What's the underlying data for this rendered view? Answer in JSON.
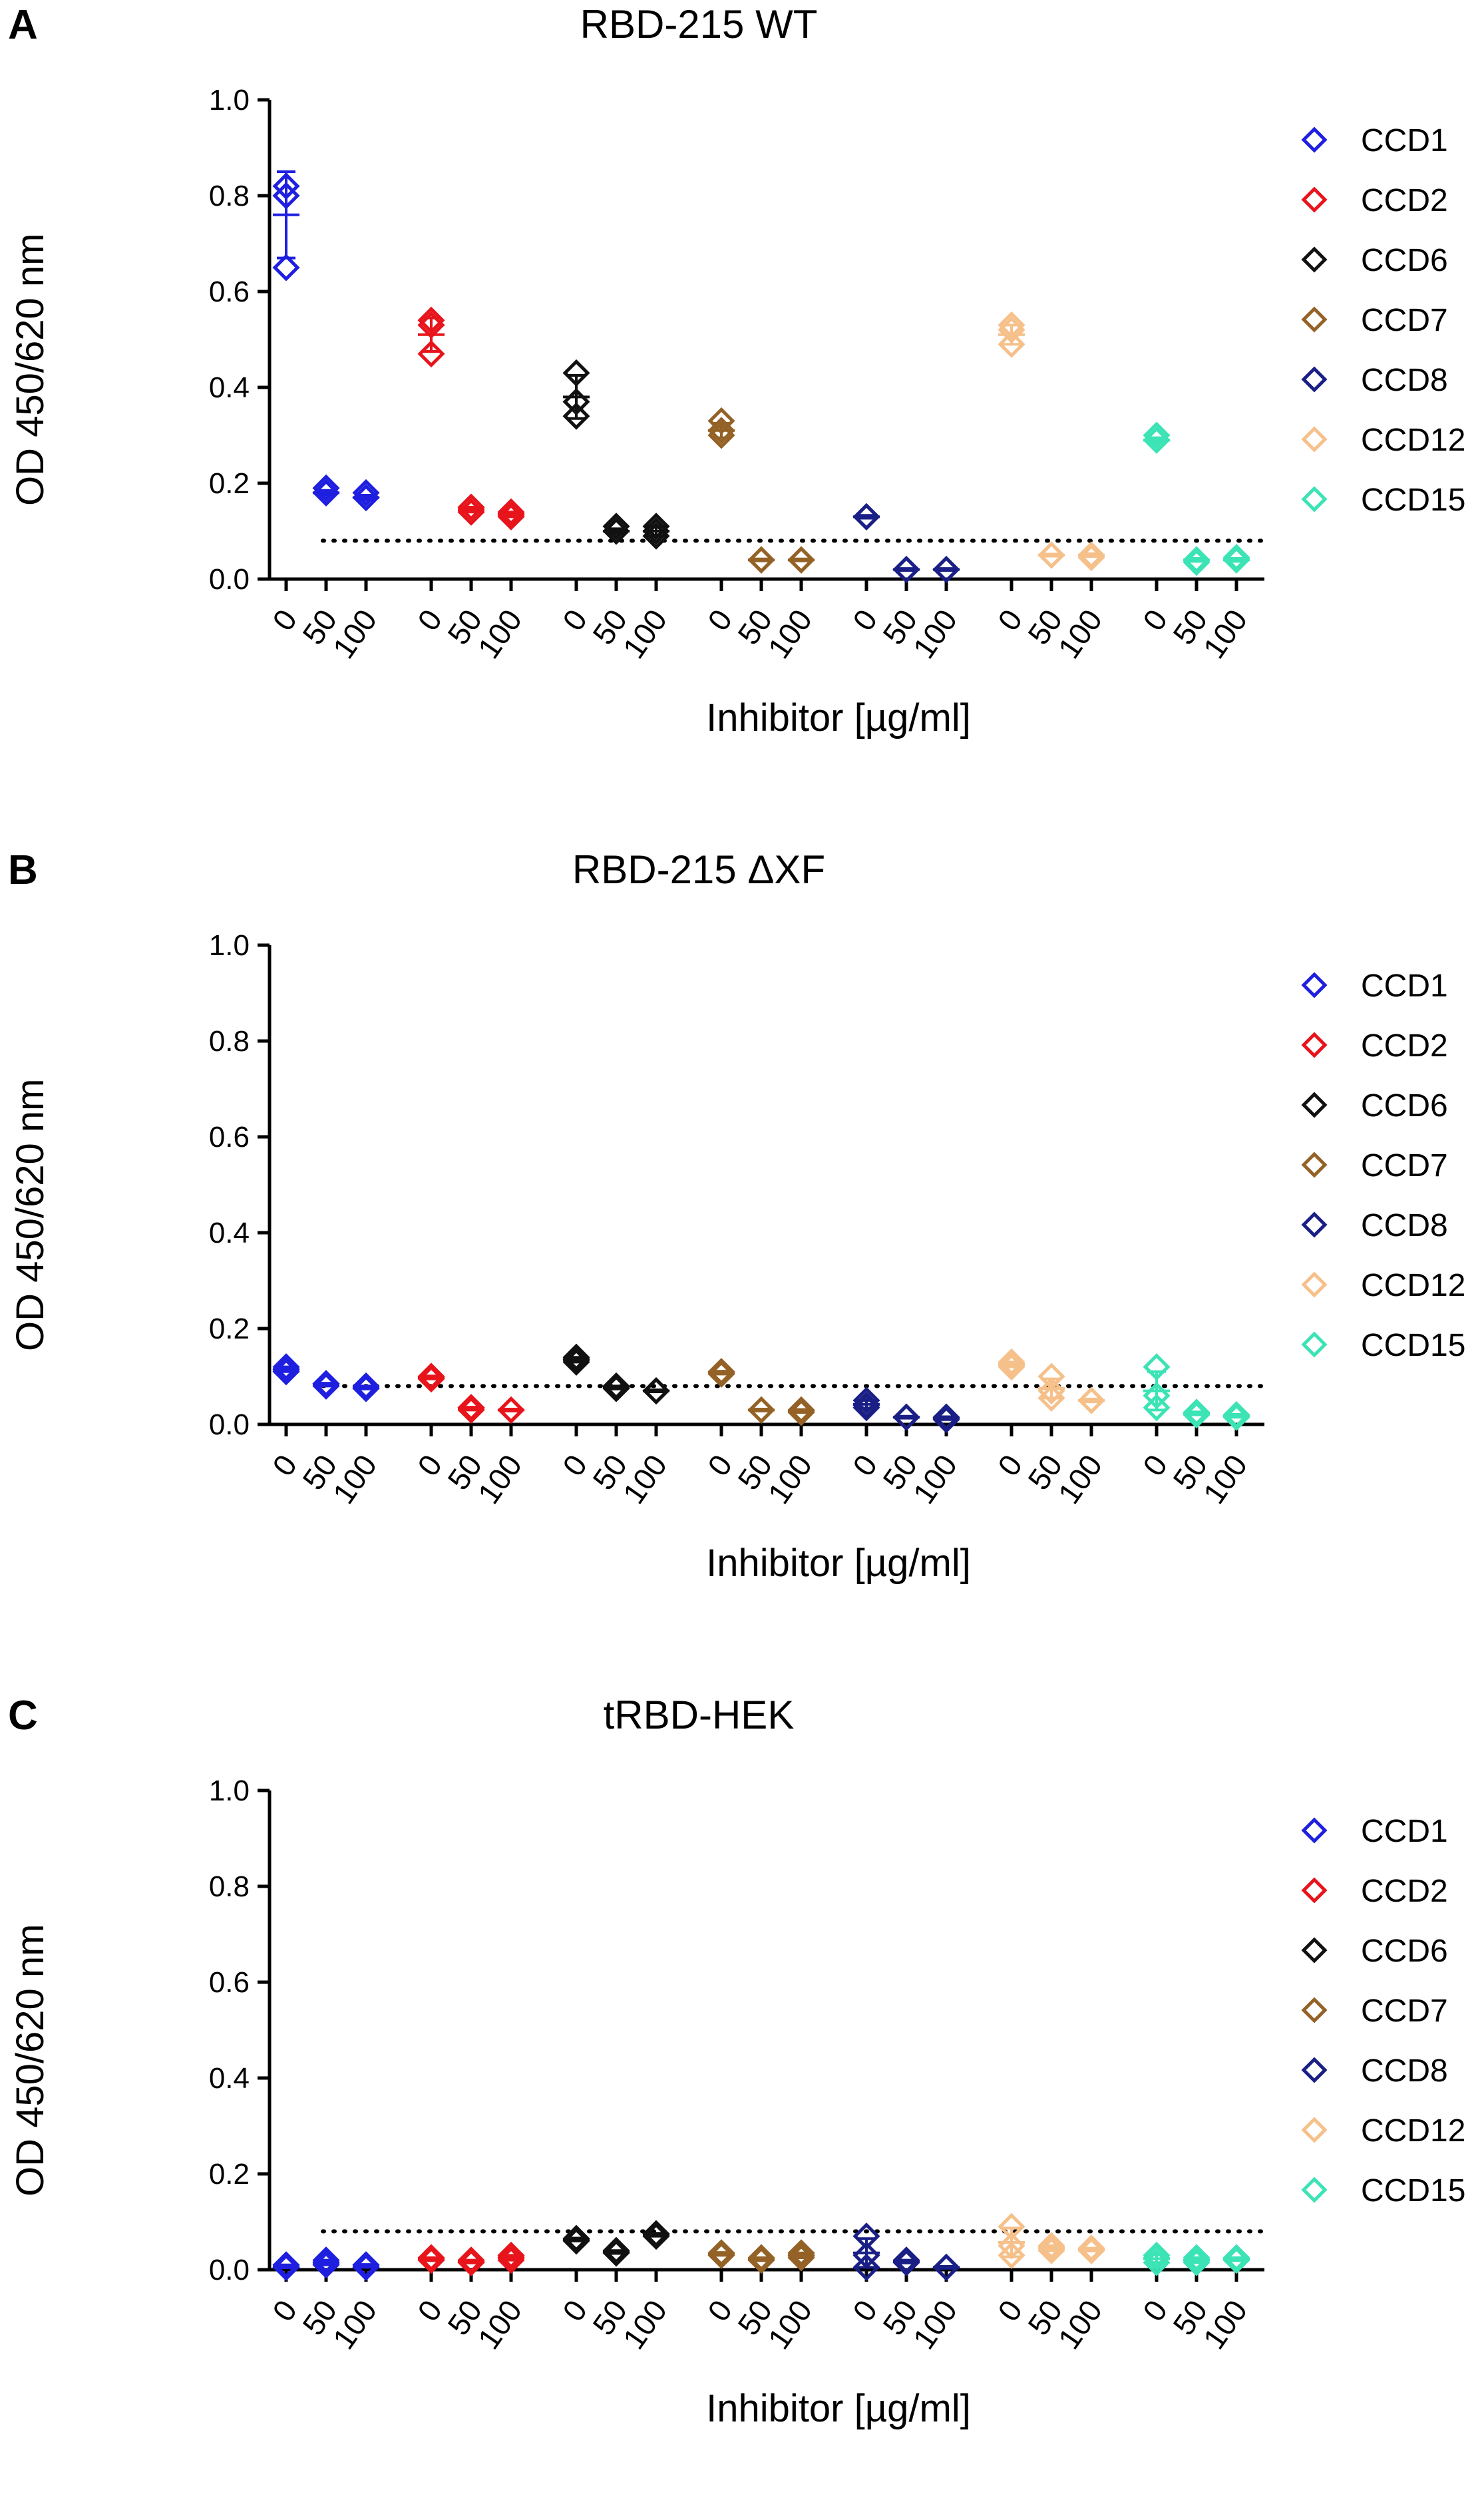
{
  "xlabel": "Inhibitor [µg/ml]",
  "ylabel": "OD 450/620 nm",
  "dose_labels": [
    "0",
    "50",
    "100"
  ],
  "ylim": [
    0,
    1.0
  ],
  "yticks": [
    "0.0",
    "0.2",
    "0.4",
    "0.6",
    "0.8",
    "1.0"
  ],
  "threshold": 0.08,
  "chart_data": [
    {
      "panel": "A",
      "type": "scatter",
      "title": "RBD-215 WT",
      "series": [
        {
          "name": "CCD1",
          "color": "#1f1fe0",
          "points": [
            [
              0.82,
              0.8,
              0.65
            ],
            [
              0.18,
              0.19,
              0.18
            ],
            [
              0.17,
              0.18,
              0.17
            ]
          ],
          "mean": [
            0.76,
            0.18,
            0.17
          ],
          "sd": [
            0.09,
            0.005,
            0.005
          ]
        },
        {
          "name": "CCD2",
          "color": "#e8141c",
          "points": [
            [
              0.54,
              0.53,
              0.47
            ],
            [
              0.14,
              0.15,
              0.14
            ],
            [
              0.13,
              0.14,
              0.135
            ]
          ],
          "mean": [
            0.51,
            0.145,
            0.135
          ],
          "sd": [
            0.035,
            0.005,
            0.005
          ]
        },
        {
          "name": "CCD6",
          "color": "#111111",
          "points": [
            [
              0.43,
              0.37,
              0.34
            ],
            [
              0.1,
              0.11,
              0.1
            ],
            [
              0.09,
              0.11,
              0.1
            ]
          ],
          "mean": [
            0.38,
            0.1,
            0.1
          ],
          "sd": [
            0.045,
            0.005,
            0.01
          ]
        },
        {
          "name": "CCD7",
          "color": "#946226",
          "points": [
            [
              0.33,
              0.31,
              0.3
            ],
            [
              0.04,
              0.04,
              0.04
            ],
            [
              0.04,
              0.04,
              0.04
            ]
          ],
          "mean": [
            0.31,
            0.04,
            0.04
          ],
          "sd": [
            0.015,
            0.002,
            0.002
          ]
        },
        {
          "name": "CCD8",
          "color": "#1a1f86",
          "points": [
            [
              0.13,
              0.13,
              0.13
            ],
            [
              0.02,
              0.02,
              0.02
            ],
            [
              0.02,
              0.02,
              0.02
            ]
          ],
          "mean": [
            0.13,
            0.02,
            0.02
          ],
          "sd": [
            0.003,
            0.002,
            0.002
          ]
        },
        {
          "name": "CCD12",
          "color": "#f6c08a",
          "points": [
            [
              0.53,
              0.52,
              0.49
            ],
            [
              0.05,
              0.05,
              0.05
            ],
            [
              0.05,
              0.05,
              0.045
            ]
          ],
          "mean": [
            0.51,
            0.05,
            0.05
          ],
          "sd": [
            0.02,
            0.002,
            0.003
          ]
        },
        {
          "name": "CCD15",
          "color": "#3be3b5",
          "points": [
            [
              0.3,
              0.29,
              0.29
            ],
            [
              0.04,
              0.04,
              0.035
            ],
            [
              0.04,
              0.045,
              0.04
            ]
          ],
          "mean": [
            0.29,
            0.04,
            0.04
          ],
          "sd": [
            0.005,
            0.003,
            0.003
          ]
        }
      ]
    },
    {
      "panel": "B",
      "type": "scatter",
      "title": "RBD-215 ΔXF",
      "series": [
        {
          "name": "CCD1",
          "color": "#1f1fe0",
          "points": [
            [
              0.12,
              0.115,
              0.11
            ],
            [
              0.085,
              0.08,
              0.085
            ],
            [
              0.075,
              0.08,
              0.075
            ]
          ],
          "mean": [
            0.115,
            0.083,
            0.077
          ],
          "sd": [
            0.005,
            0.003,
            0.003
          ]
        },
        {
          "name": "CCD2",
          "color": "#e8141c",
          "points": [
            [
              0.1,
              0.1,
              0.095
            ],
            [
              0.035,
              0.035,
              0.03
            ],
            [
              0.03,
              0.03,
              0.03
            ]
          ],
          "mean": [
            0.098,
            0.033,
            0.03
          ],
          "sd": [
            0.003,
            0.003,
            0.002
          ]
        },
        {
          "name": "CCD6",
          "color": "#111111",
          "points": [
            [
              0.14,
              0.135,
              0.13
            ],
            [
              0.08,
              0.075,
              0.075
            ],
            [
              0.07,
              0.07,
              0.07
            ]
          ],
          "mean": [
            0.135,
            0.077,
            0.07
          ],
          "sd": [
            0.005,
            0.003,
            0.002
          ]
        },
        {
          "name": "CCD7",
          "color": "#946226",
          "points": [
            [
              0.11,
              0.105,
              0.11
            ],
            [
              0.03,
              0.03,
              0.03
            ],
            [
              0.03,
              0.025,
              0.03
            ]
          ],
          "mean": [
            0.108,
            0.03,
            0.028
          ],
          "sd": [
            0.003,
            0.002,
            0.003
          ]
        },
        {
          "name": "CCD8",
          "color": "#1a1f86",
          "points": [
            [
              0.05,
              0.04,
              0.035
            ],
            [
              0.015,
              0.015,
              0.015
            ],
            [
              0.015,
              0.01,
              0.015
            ]
          ],
          "mean": [
            0.042,
            0.015,
            0.013
          ],
          "sd": [
            0.008,
            0.002,
            0.003
          ]
        },
        {
          "name": "CCD12",
          "color": "#f6c08a",
          "points": [
            [
              0.13,
              0.12,
              0.125
            ],
            [
              0.1,
              0.07,
              0.055
            ],
            [
              0.05,
              0.05,
              0.05
            ]
          ],
          "mean": [
            0.125,
            0.075,
            0.05
          ],
          "sd": [
            0.005,
            0.02,
            0.003
          ]
        },
        {
          "name": "CCD15",
          "color": "#3be3b5",
          "points": [
            [
              0.12,
              0.06,
              0.035
            ],
            [
              0.025,
              0.02,
              0.025
            ],
            [
              0.015,
              0.02,
              0.02
            ]
          ],
          "mean": [
            0.07,
            0.023,
            0.018
          ],
          "sd": [
            0.04,
            0.003,
            0.003
          ]
        }
      ]
    },
    {
      "panel": "C",
      "type": "scatter",
      "title": "tRBD-HEK",
      "series": [
        {
          "name": "CCD1",
          "color": "#1f1fe0",
          "points": [
            [
              0.005,
              0.01,
              0.005
            ],
            [
              0.02,
              0.015,
              0.01
            ],
            [
              0.01,
              0.005,
              0.01
            ]
          ],
          "mean": [
            0.007,
            0.015,
            0.008
          ],
          "sd": [
            0.003,
            0.005,
            0.003
          ]
        },
        {
          "name": "CCD2",
          "color": "#e8141c",
          "points": [
            [
              0.02,
              0.025,
              0.02
            ],
            [
              0.015,
              0.02,
              0.015
            ],
            [
              0.025,
              0.03,
              0.02
            ]
          ],
          "mean": [
            0.022,
            0.017,
            0.025
          ],
          "sd": [
            0.003,
            0.003,
            0.005
          ]
        },
        {
          "name": "CCD6",
          "color": "#111111",
          "points": [
            [
              0.065,
              0.065,
              0.06
            ],
            [
              0.04,
              0.035,
              0.035
            ],
            [
              0.075,
              0.075,
              0.07
            ]
          ],
          "mean": [
            0.063,
            0.037,
            0.073
          ],
          "sd": [
            0.003,
            0.003,
            0.003
          ]
        },
        {
          "name": "CCD7",
          "color": "#946226",
          "points": [
            [
              0.035,
              0.03,
              0.035
            ],
            [
              0.02,
              0.025,
              0.02
            ],
            [
              0.03,
              0.035,
              0.025
            ]
          ],
          "mean": [
            0.033,
            0.022,
            0.03
          ],
          "sd": [
            0.003,
            0.003,
            0.005
          ]
        },
        {
          "name": "CCD8",
          "color": "#1a1f86",
          "points": [
            [
              0.07,
              0.03,
              0.005
            ],
            [
              0.02,
              0.015,
              0.015
            ],
            [
              0.005,
              0.005,
              0.005
            ]
          ],
          "mean": [
            0.035,
            0.017,
            0.005
          ],
          "sd": [
            0.03,
            0.003,
            0.002
          ]
        },
        {
          "name": "CCD12",
          "color": "#f6c08a",
          "points": [
            [
              0.09,
              0.05,
              0.03
            ],
            [
              0.05,
              0.045,
              0.04
            ],
            [
              0.04,
              0.04,
              0.045
            ]
          ],
          "mean": [
            0.057,
            0.045,
            0.042
          ],
          "sd": [
            0.03,
            0.005,
            0.003
          ]
        },
        {
          "name": "CCD15",
          "color": "#3be3b5",
          "points": [
            [
              0.03,
              0.025,
              0.015
            ],
            [
              0.02,
              0.025,
              0.015
            ],
            [
              0.02,
              0.02,
              0.025
            ]
          ],
          "mean": [
            0.023,
            0.02,
            0.022
          ],
          "sd": [
            0.008,
            0.005,
            0.003
          ]
        }
      ]
    }
  ]
}
